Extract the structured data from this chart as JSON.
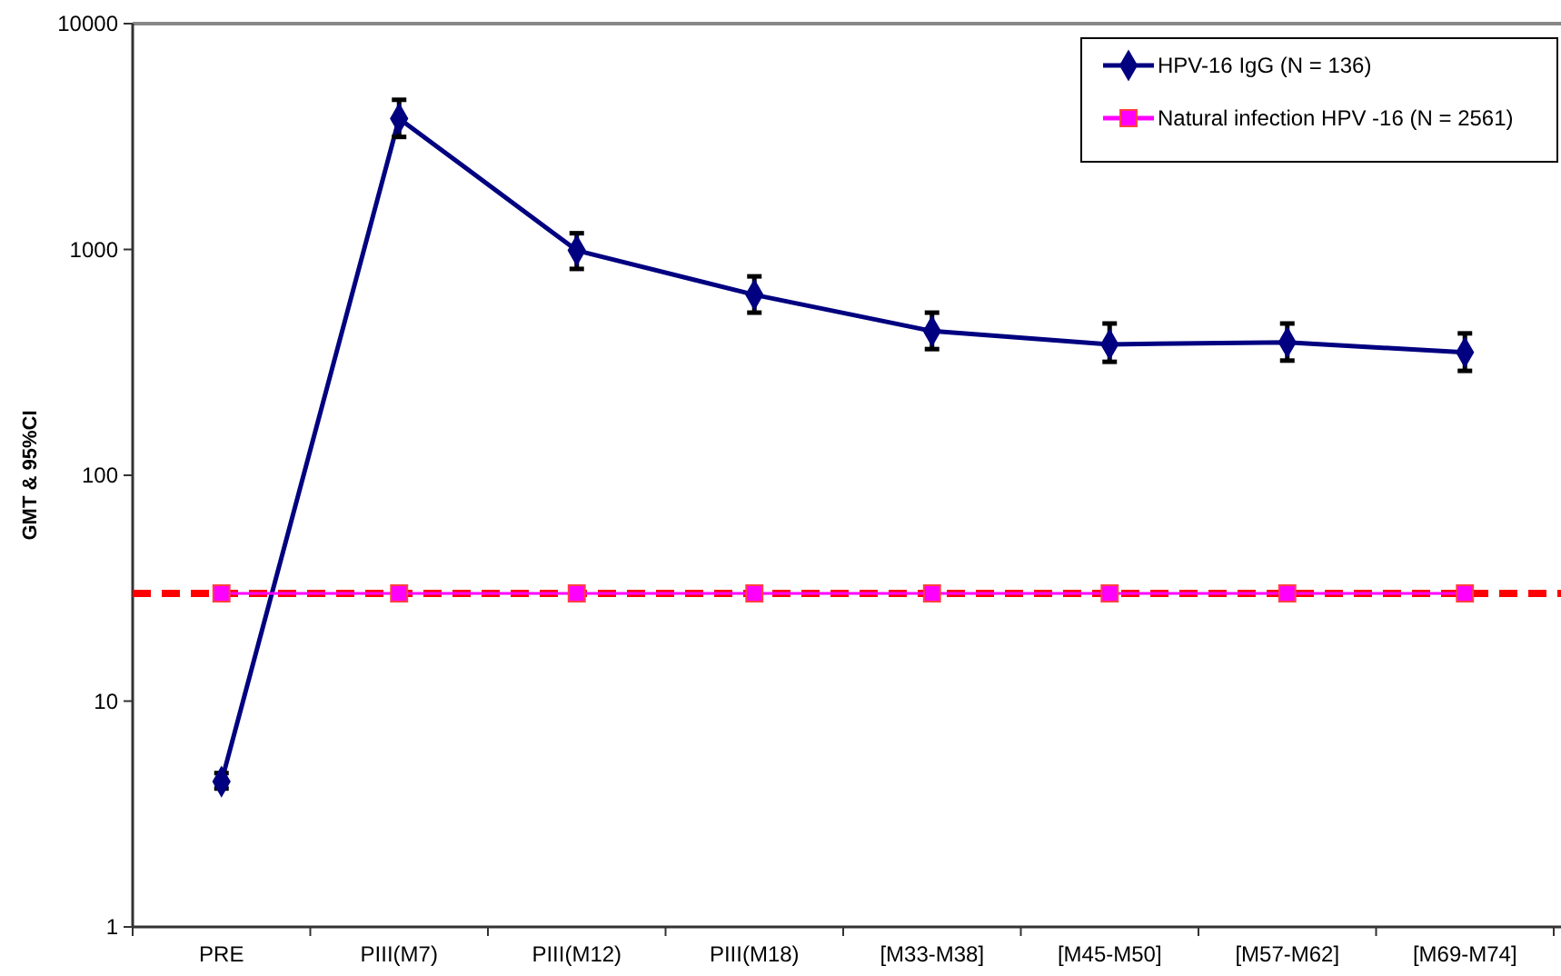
{
  "chart_data": {
    "type": "line",
    "ylabel": "GMT & 95%CI",
    "log": true,
    "ylim": [
      1,
      10000
    ],
    "yticks": [
      1,
      10,
      100,
      1000,
      10000
    ],
    "grid": false,
    "legend": "top right",
    "categories": [
      "PRE",
      "PIII(M7)",
      "PIII(M12)",
      "PIII(M18)",
      "[M33-M38]",
      "[M45-M50]",
      "[M57-M62]",
      "[M69-M74]"
    ],
    "series": [
      {
        "name": "HPV-16 IgG (N = 136)",
        "color": "#000080",
        "marker": "diamond",
        "values": [
          4.4,
          3800,
          990,
          630,
          435,
          380,
          388,
          350
        ],
        "errors": [
          [
            4.1,
            4.8
          ],
          [
            3150,
            4600
          ],
          [
            820,
            1180
          ],
          [
            525,
            760
          ],
          [
            362,
            525
          ],
          [
            318,
            470
          ],
          [
            322,
            470
          ],
          [
            290,
            425
          ]
        ]
      },
      {
        "name": "Natural infection HPV -16 (N = 2561)",
        "color": "#ff00ff",
        "marker": "square",
        "values": [
          30,
          30,
          30,
          30,
          30,
          30,
          30,
          30
        ]
      }
    ],
    "ref_lines": [
      {
        "axis": "y",
        "value": 30,
        "color": "#ff0000",
        "line_style": "dashed"
      }
    ]
  }
}
